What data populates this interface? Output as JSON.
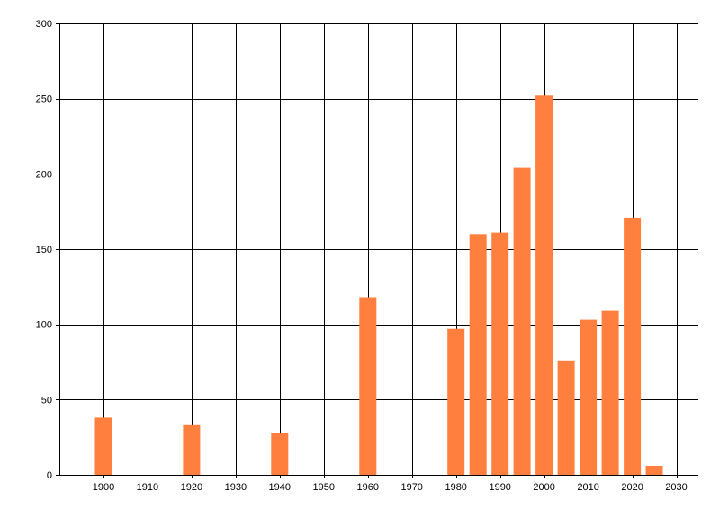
{
  "chart_data": {
    "type": "bar",
    "title": "",
    "xlabel": "",
    "ylabel": "",
    "x": [
      1900,
      1920,
      1940,
      1960,
      1980,
      1985,
      1990,
      1995,
      2000,
      2005,
      2010,
      2015,
      2020,
      2025
    ],
    "values": [
      38,
      33,
      28,
      118,
      97,
      160,
      161,
      204,
      252,
      76,
      103,
      109,
      171,
      6
    ],
    "xlim": [
      1890,
      2035
    ],
    "ylim": [
      0,
      300
    ],
    "xticks": [
      1900,
      1910,
      1920,
      1930,
      1940,
      1950,
      1960,
      1970,
      1980,
      1990,
      2000,
      2010,
      2020,
      2030
    ],
    "yticks": [
      0,
      50,
      100,
      150,
      200,
      250,
      300
    ],
    "grid": true,
    "bar_color": "#ff7f3f",
    "grid_color": "#000000"
  }
}
